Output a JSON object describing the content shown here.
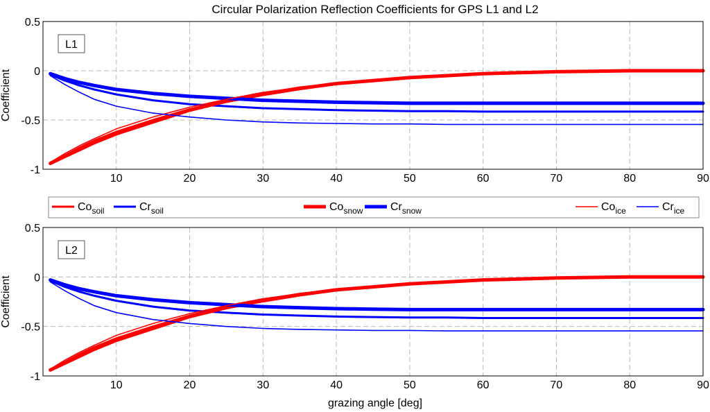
{
  "chart_data": {
    "type": "line",
    "title": "Circular Polarization Reflection Coefficients for GPS L1 and L2",
    "xlabel": "grazing angle [deg]",
    "ylabel": "Coefficient",
    "xlim": [
      0,
      90
    ],
    "ylim": [
      -1,
      0.5
    ],
    "xticks": [
      "10",
      "20",
      "30",
      "40",
      "50",
      "60",
      "70",
      "80",
      "90"
    ],
    "yticks": [
      "0.5",
      "0",
      "-0.5",
      "-1"
    ],
    "grid": true,
    "legend": {
      "position": "between-panels",
      "entries": [
        {
          "base": "Co",
          "sub": "soil",
          "color": "#ff0000",
          "weight": "medium"
        },
        {
          "base": "Cr",
          "sub": "soil",
          "color": "#0000ff",
          "weight": "medium"
        },
        {
          "base": "Co",
          "sub": "snow",
          "color": "#ff0000",
          "weight": "thick"
        },
        {
          "base": "Cr",
          "sub": "snow",
          "color": "#0000ff",
          "weight": "thick"
        },
        {
          "base": "Co",
          "sub": "ice",
          "color": "#ff0000",
          "weight": "thin"
        },
        {
          "base": "Cr",
          "sub": "ice",
          "color": "#0000ff",
          "weight": "thin"
        }
      ]
    },
    "x": [
      1,
      3,
      5,
      7,
      10,
      15,
      20,
      25,
      30,
      35,
      40,
      45,
      50,
      55,
      60,
      65,
      70,
      75,
      80,
      85,
      90
    ],
    "panels": [
      {
        "label": "L1",
        "series": [
          {
            "name": "Co_soil",
            "color": "#ff0000",
            "weight": "medium",
            "values": [
              -0.94,
              -0.86,
              -0.78,
              -0.71,
              -0.62,
              -0.5,
              -0.39,
              -0.3,
              -0.23,
              -0.17,
              -0.13,
              -0.1,
              -0.07,
              -0.05,
              -0.03,
              -0.02,
              -0.01,
              -0.005,
              0,
              0,
              0
            ]
          },
          {
            "name": "Cr_soil",
            "color": "#0000ff",
            "weight": "medium",
            "values": [
              -0.04,
              -0.1,
              -0.15,
              -0.19,
              -0.24,
              -0.3,
              -0.34,
              -0.36,
              -0.38,
              -0.39,
              -0.4,
              -0.405,
              -0.41,
              -0.41,
              -0.415,
              -0.415,
              -0.415,
              -0.415,
              -0.415,
              -0.415,
              -0.415
            ]
          },
          {
            "name": "Co_snow",
            "color": "#ff0000",
            "weight": "thick",
            "values": [
              -0.94,
              -0.87,
              -0.8,
              -0.73,
              -0.64,
              -0.52,
              -0.4,
              -0.31,
              -0.24,
              -0.18,
              -0.13,
              -0.1,
              -0.07,
              -0.05,
              -0.03,
              -0.02,
              -0.01,
              -0.005,
              0,
              0,
              0
            ]
          },
          {
            "name": "Cr_snow",
            "color": "#0000ff",
            "weight": "thick",
            "values": [
              -0.03,
              -0.08,
              -0.12,
              -0.15,
              -0.19,
              -0.23,
              -0.26,
              -0.28,
              -0.3,
              -0.31,
              -0.32,
              -0.325,
              -0.33,
              -0.33,
              -0.33,
              -0.33,
              -0.33,
              -0.33,
              -0.33,
              -0.33,
              -0.33
            ]
          },
          {
            "name": "Co_ice",
            "color": "#ff0000",
            "weight": "thin",
            "values": [
              -0.93,
              -0.84,
              -0.76,
              -0.69,
              -0.59,
              -0.47,
              -0.37,
              -0.29,
              -0.22,
              -0.17,
              -0.13,
              -0.1,
              -0.07,
              -0.05,
              -0.03,
              -0.02,
              -0.01,
              -0.005,
              0,
              0,
              0
            ]
          },
          {
            "name": "Cr_ice",
            "color": "#0000ff",
            "weight": "thin",
            "values": [
              -0.05,
              -0.14,
              -0.22,
              -0.29,
              -0.36,
              -0.43,
              -0.47,
              -0.5,
              -0.52,
              -0.53,
              -0.535,
              -0.54,
              -0.54,
              -0.545,
              -0.545,
              -0.545,
              -0.545,
              -0.545,
              -0.545,
              -0.545,
              -0.545
            ]
          }
        ]
      },
      {
        "label": "L2",
        "series": [
          {
            "name": "Co_soil",
            "color": "#ff0000",
            "weight": "medium",
            "values": [
              -0.94,
              -0.86,
              -0.78,
              -0.71,
              -0.62,
              -0.5,
              -0.39,
              -0.3,
              -0.23,
              -0.17,
              -0.13,
              -0.1,
              -0.07,
              -0.05,
              -0.03,
              -0.02,
              -0.01,
              -0.005,
              0,
              0,
              0
            ]
          },
          {
            "name": "Cr_soil",
            "color": "#0000ff",
            "weight": "medium",
            "values": [
              -0.04,
              -0.1,
              -0.15,
              -0.19,
              -0.24,
              -0.3,
              -0.34,
              -0.36,
              -0.38,
              -0.39,
              -0.4,
              -0.405,
              -0.41,
              -0.41,
              -0.415,
              -0.415,
              -0.415,
              -0.415,
              -0.415,
              -0.415,
              -0.415
            ]
          },
          {
            "name": "Co_snow",
            "color": "#ff0000",
            "weight": "thick",
            "values": [
              -0.94,
              -0.87,
              -0.8,
              -0.73,
              -0.64,
              -0.52,
              -0.4,
              -0.31,
              -0.24,
              -0.18,
              -0.13,
              -0.1,
              -0.07,
              -0.05,
              -0.03,
              -0.02,
              -0.01,
              -0.005,
              0,
              0,
              0
            ]
          },
          {
            "name": "Cr_snow",
            "color": "#0000ff",
            "weight": "thick",
            "values": [
              -0.03,
              -0.08,
              -0.12,
              -0.15,
              -0.19,
              -0.23,
              -0.26,
              -0.28,
              -0.3,
              -0.31,
              -0.32,
              -0.325,
              -0.33,
              -0.33,
              -0.33,
              -0.33,
              -0.33,
              -0.33,
              -0.33,
              -0.33,
              -0.33
            ]
          },
          {
            "name": "Co_ice",
            "color": "#ff0000",
            "weight": "thin",
            "values": [
              -0.93,
              -0.84,
              -0.76,
              -0.69,
              -0.59,
              -0.47,
              -0.37,
              -0.29,
              -0.22,
              -0.17,
              -0.13,
              -0.1,
              -0.07,
              -0.05,
              -0.03,
              -0.02,
              -0.01,
              -0.005,
              0,
              0,
              0
            ]
          },
          {
            "name": "Cr_ice",
            "color": "#0000ff",
            "weight": "thin",
            "values": [
              -0.05,
              -0.14,
              -0.22,
              -0.29,
              -0.36,
              -0.43,
              -0.47,
              -0.5,
              -0.52,
              -0.53,
              -0.535,
              -0.54,
              -0.54,
              -0.545,
              -0.545,
              -0.545,
              -0.545,
              -0.545,
              -0.545,
              -0.545,
              -0.545
            ]
          }
        ]
      }
    ]
  }
}
